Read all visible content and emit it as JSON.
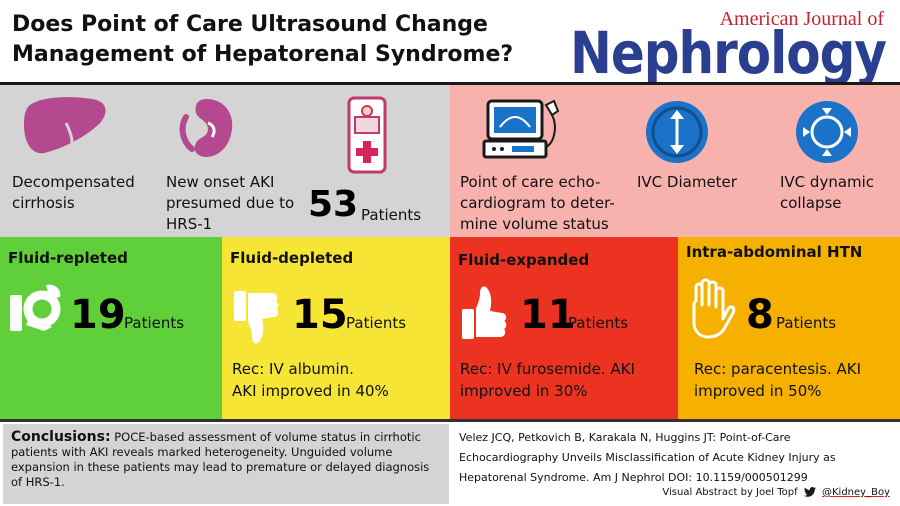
{
  "header": {
    "title_line1": "Does Point of Care Ultrasound Change",
    "title_line2": "Management of Hepatorenal Syndrome?",
    "journal_top": "American Journal of",
    "journal_main": "Nephrology"
  },
  "population": {
    "label1_l1": "Decompensated",
    "label1_l2": "cirrhosis",
    "label2_l1": "New onset AKI",
    "label2_l2": "presumed due to",
    "label2_l3": "HRS-1",
    "count": "53",
    "count_label": "Patients",
    "icons": [
      "liver-icon",
      "kidney-icon",
      "patient-bed-icon"
    ]
  },
  "method": {
    "label1_l1": "Point of care echo-",
    "label1_l2": "cardiogram to deter-",
    "label1_l3": "mine volume status",
    "label2": "IVC Diameter",
    "label3_l1": "IVC dynamic",
    "label3_l2": "collapse",
    "icons": [
      "ultrasound-machine-icon",
      "ivc-diameter-icon",
      "ivc-collapse-icon"
    ]
  },
  "groups": [
    {
      "title": "Fluid-repleted",
      "count": "19",
      "count_label": "Patients",
      "rec_l1": "",
      "rec_l2": "",
      "color": "#5fcf3a",
      "icon": "ok-hand-icon"
    },
    {
      "title": "Fluid-depleted",
      "count": "15",
      "count_label": "Patients",
      "rec_l1": "Rec: IV albumin.",
      "rec_l2": "AKI improved in 40%",
      "color": "#f7e535",
      "icon": "thumbs-down-icon"
    },
    {
      "title": "Fluid-expanded",
      "count": "11",
      "count_label": "Patients",
      "rec_l1": "Rec: IV furosemide. AKI",
      "rec_l2": "improved in 30%",
      "color": "#ec3322",
      "icon": "thumbs-up-icon"
    },
    {
      "title": "Intra-abdominal HTN",
      "count": "8",
      "count_label": "Patients",
      "rec_l1": "Rec: paracentesis. AKI",
      "rec_l2": "improved in 50%",
      "color": "#f5b000",
      "icon": "stop-hand-icon"
    }
  ],
  "conclusion": {
    "heading": "Conclusions:",
    "text": "POCE-based assessment of volume status in cirrhotic patients with AKI reveals marked heterogeneity. Unguided volume expansion in these patients may lead to premature or delayed diagnosis of HRS-1."
  },
  "citation": {
    "line1": "Velez JCQ, Petkovich B, Karakala N, Huggins JT: Point-of-Care",
    "line2": "Echocardiography Unveils Misclassification of Acute Kidney Injury as",
    "line3": "Hepatorenal Syndrome. Am J Nephrol DOI: 10.1159/000501299"
  },
  "credit": {
    "text": "Visual Abstract by Joel Topf",
    "handle": "@Kidney_Boy"
  },
  "colors": {
    "gray_panel": "#d4d4d4",
    "pink_panel": "#f8b2ad",
    "organ": "#b5498f",
    "ivc_blue": "#1a73c9",
    "brand_blue": "#2a3f8f",
    "brand_red": "#c8202c"
  }
}
